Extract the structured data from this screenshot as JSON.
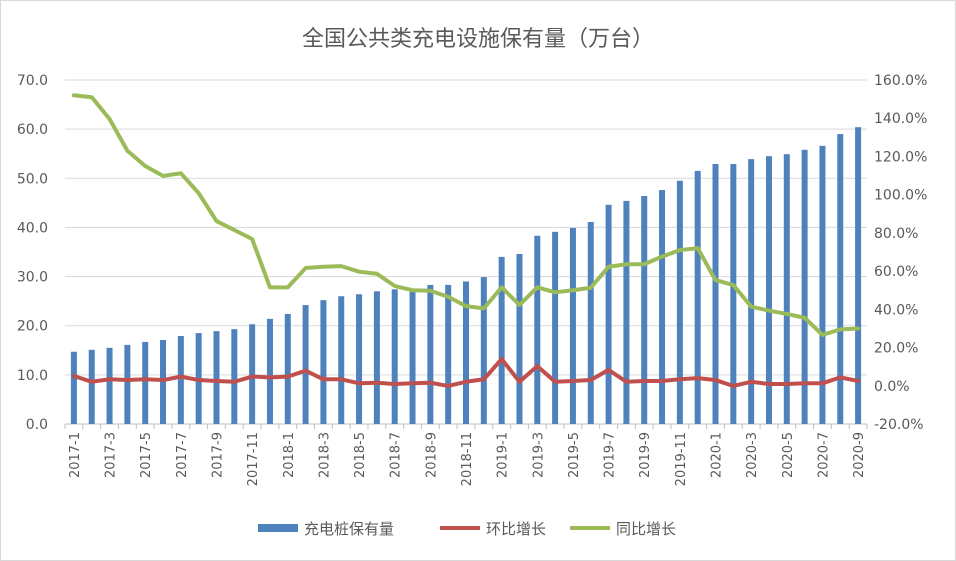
{
  "chart_data": {
    "type": "bar+line",
    "title": "全国公共类充电设施保有量（万台）",
    "categories": [
      "2017-1",
      "2017-2",
      "2017-3",
      "2017-4",
      "2017-5",
      "2017-6",
      "2017-7",
      "2017-8",
      "2017-9",
      "2017-10",
      "2017-11",
      "2017-12",
      "2018-1",
      "2018-2",
      "2018-3",
      "2018-4",
      "2018-5",
      "2018-6",
      "2018-7",
      "2018-8",
      "2018-9",
      "2018-10",
      "2018-11",
      "2018-12",
      "2019-1",
      "2019-2",
      "2019-3",
      "2019-4",
      "2019-5",
      "2019-6",
      "2019-7",
      "2019-8",
      "2019-9",
      "2019-10",
      "2019-11",
      "2019-12",
      "2020-1",
      "2020-2",
      "2020-3",
      "2020-4",
      "2020-5",
      "2020-6",
      "2020-7",
      "2020-8",
      "2020-9"
    ],
    "y_left": {
      "range": [
        0,
        70
      ],
      "ticks": [
        "0.0",
        "10.0",
        "20.0",
        "30.0",
        "40.0",
        "50.0",
        "60.0",
        "70.0"
      ]
    },
    "y_right": {
      "range": [
        -20,
        160
      ],
      "unit": "%",
      "ticks": [
        "-20.0%",
        "0.0%",
        "20.0%",
        "40.0%",
        "60.0%",
        "80.0%",
        "100.0%",
        "120.0%",
        "140.0%",
        "160.0%"
      ]
    },
    "grid": true,
    "legend_position": "bottom",
    "series": [
      {
        "name": "充电桩保有量",
        "type": "bar",
        "axis": "left",
        "color": "#4f81bd",
        "values": [
          14.7,
          15.1,
          15.5,
          16.1,
          16.7,
          17.1,
          17.9,
          18.5,
          18.9,
          19.3,
          20.3,
          21.4,
          22.4,
          24.2,
          25.2,
          26.0,
          26.4,
          27.0,
          27.4,
          27.2,
          28.3,
          28.3,
          29.0,
          29.9,
          34.0,
          34.6,
          38.3,
          39.1,
          39.9,
          41.1,
          44.6,
          45.4,
          46.4,
          47.6,
          49.5,
          51.5,
          52.9,
          52.9,
          53.9,
          54.5,
          54.9,
          55.8,
          56.6,
          59.0,
          60.4
        ]
      },
      {
        "name": "环比增长",
        "type": "line",
        "axis": "right",
        "color": "#c0504d",
        "values": [
          5.1,
          2.1,
          3.4,
          3.0,
          3.4,
          3.0,
          4.8,
          3.0,
          2.5,
          2.1,
          4.8,
          4.4,
          4.8,
          7.9,
          3.4,
          3.4,
          1.3,
          1.6,
          0.9,
          1.3,
          1.6,
          -0.1,
          2.1,
          3.4,
          14.0,
          2.1,
          10.3,
          2.1,
          2.5,
          3.0,
          8.3,
          2.1,
          2.5,
          2.5,
          3.4,
          4.0,
          3.0,
          -0.1,
          2.1,
          0.9,
          0.9,
          1.3,
          1.3,
          4.4,
          2.5
        ]
      },
      {
        "name": "同比增长",
        "type": "line",
        "axis": "right",
        "color": "#9bbb59",
        "values": [
          152.0,
          151.0,
          139.6,
          123.0,
          115.0,
          109.8,
          111.2,
          100.8,
          86.2,
          81.5,
          76.8,
          51.5,
          51.5,
          61.6,
          62.3,
          62.6,
          59.7,
          58.6,
          52.2,
          50.0,
          49.7,
          46.6,
          41.7,
          40.5,
          51.5,
          42.3,
          51.5,
          48.9,
          50.0,
          51.3,
          62.3,
          63.6,
          63.6,
          67.6,
          71.0,
          72.0,
          55.3,
          52.7,
          41.4,
          39.3,
          37.6,
          35.6,
          26.6,
          29.5,
          30.0
        ]
      }
    ]
  }
}
